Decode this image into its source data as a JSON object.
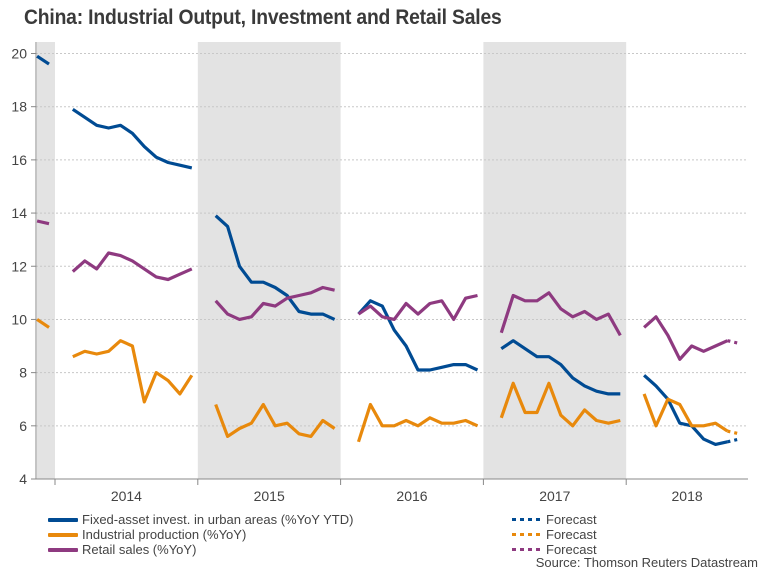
{
  "chart_data": {
    "type": "line",
    "title": "China: Industrial Output, Investment and Retail Sales",
    "xlabel": "",
    "ylabel": "",
    "ylim": [
      4,
      20
    ],
    "yticks": [
      "4",
      "6",
      "8",
      "10",
      "12",
      "14",
      "16",
      "18",
      "20"
    ],
    "ytick_values": [
      4,
      6,
      8,
      10,
      12,
      14,
      16,
      18,
      20
    ],
    "grid": true,
    "shaded_years": [
      "2013",
      "2015",
      "2017"
    ],
    "x_range": [
      "2013-11",
      "2018-10"
    ],
    "year_labels": [
      "2014",
      "2015",
      "2016",
      "2017",
      "2018"
    ],
    "legend_placement": "bottom",
    "series": [
      {
        "name": "Fixed-asset invest. in urban areas (%YoY YTD)",
        "key": "fai",
        "color": "#004b93",
        "segments": [
          {
            "x": [
              "2013-11",
              "2013-12"
            ],
            "values": [
              19.9,
              19.6
            ]
          },
          {
            "x": [
              "2014-02",
              "2014-03",
              "2014-04",
              "2014-05",
              "2014-06",
              "2014-07",
              "2014-08",
              "2014-09",
              "2014-10",
              "2014-11",
              "2014-12"
            ],
            "values": [
              17.9,
              17.6,
              17.3,
              17.2,
              17.3,
              17.0,
              16.5,
              16.1,
              15.9,
              15.8,
              15.7
            ]
          },
          {
            "x": [
              "2015-02",
              "2015-03",
              "2015-04",
              "2015-05",
              "2015-06",
              "2015-07",
              "2015-08",
              "2015-09",
              "2015-10",
              "2015-11",
              "2015-12"
            ],
            "values": [
              13.9,
              13.5,
              12.0,
              11.4,
              11.4,
              11.2,
              10.9,
              10.3,
              10.2,
              10.2,
              10.0
            ]
          },
          {
            "x": [
              "2016-02",
              "2016-03",
              "2016-04",
              "2016-05",
              "2016-06",
              "2016-07",
              "2016-08",
              "2016-09",
              "2016-10",
              "2016-11",
              "2016-12"
            ],
            "values": [
              10.2,
              10.7,
              10.5,
              9.6,
              9.0,
              8.1,
              8.1,
              8.2,
              8.3,
              8.3,
              8.1
            ]
          },
          {
            "x": [
              "2017-02",
              "2017-03",
              "2017-04",
              "2017-05",
              "2017-06",
              "2017-07",
              "2017-08",
              "2017-09",
              "2017-10",
              "2017-11",
              "2017-12"
            ],
            "values": [
              8.9,
              9.2,
              8.9,
              8.6,
              8.6,
              8.3,
              7.8,
              7.5,
              7.3,
              7.2,
              7.2
            ]
          },
          {
            "x": [
              "2018-02",
              "2018-03",
              "2018-04",
              "2018-05",
              "2018-06",
              "2018-07",
              "2018-08",
              "2018-09"
            ],
            "values": [
              7.9,
              7.5,
              7.0,
              6.1,
              6.0,
              5.5,
              5.3,
              5.4
            ]
          }
        ],
        "forecast": {
          "x": [
            "2018-09",
            "2018-10"
          ],
          "values": [
            5.4,
            5.5
          ]
        }
      },
      {
        "name": "Industrial production (%YoY)",
        "key": "ip",
        "color": "#e8890c",
        "segments": [
          {
            "x": [
              "2013-11",
              "2013-12"
            ],
            "values": [
              10.0,
              9.7
            ]
          },
          {
            "x": [
              "2014-02",
              "2014-03",
              "2014-04",
              "2014-05",
              "2014-06",
              "2014-07",
              "2014-08",
              "2014-09",
              "2014-10",
              "2014-11",
              "2014-12"
            ],
            "values": [
              8.6,
              8.8,
              8.7,
              8.8,
              9.2,
              9.0,
              6.9,
              8.0,
              7.7,
              7.2,
              7.9
            ]
          },
          {
            "x": [
              "2015-02",
              "2015-03",
              "2015-04",
              "2015-05",
              "2015-06",
              "2015-07",
              "2015-08",
              "2015-09",
              "2015-10",
              "2015-11",
              "2015-12"
            ],
            "values": [
              6.8,
              5.6,
              5.9,
              6.1,
              6.8,
              6.0,
              6.1,
              5.7,
              5.6,
              6.2,
              5.9
            ]
          },
          {
            "x": [
              "2016-02",
              "2016-03",
              "2016-04",
              "2016-05",
              "2016-06",
              "2016-07",
              "2016-08",
              "2016-09",
              "2016-10",
              "2016-11",
              "2016-12"
            ],
            "values": [
              5.4,
              6.8,
              6.0,
              6.0,
              6.2,
              6.0,
              6.3,
              6.1,
              6.1,
              6.2,
              6.0
            ]
          },
          {
            "x": [
              "2017-02",
              "2017-03",
              "2017-04",
              "2017-05",
              "2017-06",
              "2017-07",
              "2017-08",
              "2017-09",
              "2017-10",
              "2017-11",
              "2017-12"
            ],
            "values": [
              6.3,
              7.6,
              6.5,
              6.5,
              7.6,
              6.4,
              6.0,
              6.6,
              6.2,
              6.1,
              6.2
            ]
          },
          {
            "x": [
              "2018-02",
              "2018-03",
              "2018-04",
              "2018-05",
              "2018-06",
              "2018-07",
              "2018-08",
              "2018-09"
            ],
            "values": [
              7.2,
              6.0,
              7.0,
              6.8,
              6.0,
              6.0,
              6.1,
              5.8
            ]
          }
        ],
        "forecast": {
          "x": [
            "2018-09",
            "2018-10"
          ],
          "values": [
            5.8,
            5.7
          ]
        }
      },
      {
        "name": "Retail sales (%YoY)",
        "key": "rs",
        "color": "#8e3a80",
        "segments": [
          {
            "x": [
              "2013-11",
              "2013-12"
            ],
            "values": [
              13.7,
              13.6
            ]
          },
          {
            "x": [
              "2014-02",
              "2014-03",
              "2014-04",
              "2014-05",
              "2014-06",
              "2014-07",
              "2014-08",
              "2014-09",
              "2014-10",
              "2014-11",
              "2014-12"
            ],
            "values": [
              11.8,
              12.2,
              11.9,
              12.5,
              12.4,
              12.2,
              11.9,
              11.6,
              11.5,
              11.7,
              11.9
            ]
          },
          {
            "x": [
              "2015-02",
              "2015-03",
              "2015-04",
              "2015-05",
              "2015-06",
              "2015-07",
              "2015-08",
              "2015-09",
              "2015-10",
              "2015-11",
              "2015-12"
            ],
            "values": [
              10.7,
              10.2,
              10.0,
              10.1,
              10.6,
              10.5,
              10.8,
              10.9,
              11.0,
              11.2,
              11.1
            ]
          },
          {
            "x": [
              "2016-02",
              "2016-03",
              "2016-04",
              "2016-05",
              "2016-06",
              "2016-07",
              "2016-08",
              "2016-09",
              "2016-10",
              "2016-11",
              "2016-12"
            ],
            "values": [
              10.2,
              10.5,
              10.1,
              10.0,
              10.6,
              10.2,
              10.6,
              10.7,
              10.0,
              10.8,
              10.9
            ]
          },
          {
            "x": [
              "2017-02",
              "2017-03",
              "2017-04",
              "2017-05",
              "2017-06",
              "2017-07",
              "2017-08",
              "2017-09",
              "2017-10",
              "2017-11",
              "2017-12"
            ],
            "values": [
              9.5,
              10.9,
              10.7,
              10.7,
              11.0,
              10.4,
              10.1,
              10.3,
              10.0,
              10.2,
              9.4
            ]
          },
          {
            "x": [
              "2018-02",
              "2018-03",
              "2018-04",
              "2018-05",
              "2018-06",
              "2018-07",
              "2018-08",
              "2018-09"
            ],
            "values": [
              9.7,
              10.1,
              9.4,
              8.5,
              9.0,
              8.8,
              9.0,
              9.2
            ]
          }
        ],
        "forecast": {
          "x": [
            "2018-09",
            "2018-10"
          ],
          "values": [
            9.2,
            9.1
          ]
        }
      }
    ]
  },
  "legend": {
    "solid": [
      {
        "label": "Fixed-asset invest. in urban areas (%YoY YTD)",
        "color": "#004b93"
      },
      {
        "label": "Industrial production (%YoY)",
        "color": "#e8890c"
      },
      {
        "label": "Retail sales (%YoY)",
        "color": "#8e3a80"
      }
    ],
    "forecast": [
      {
        "label": "Forecast",
        "color": "#004b93"
      },
      {
        "label": "Forecast",
        "color": "#e8890c"
      },
      {
        "label": "Forecast",
        "color": "#8e3a80"
      }
    ]
  },
  "source": "Source: Thomson Reuters Datastream",
  "colors": {
    "band": "#e3e3e3",
    "grid": "#c8c8c8",
    "axis": "#888888"
  }
}
